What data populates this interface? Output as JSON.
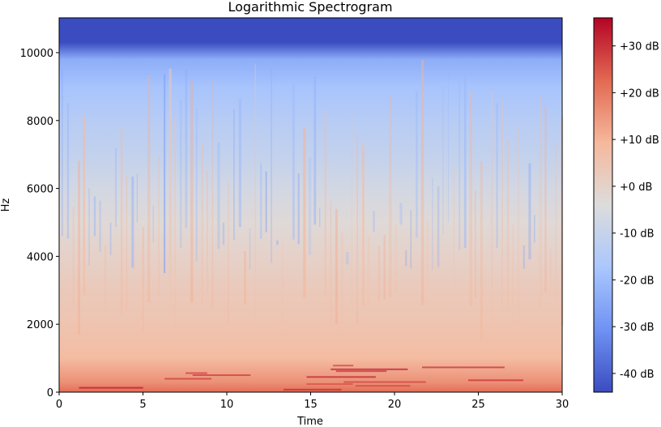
{
  "chart_data": {
    "type": "heatmap",
    "title": "Logarithmic Spectrogram",
    "xlabel": "Time",
    "ylabel": "Hz",
    "xlim": [
      0,
      30
    ],
    "ylim": [
      0,
      11025
    ],
    "x_ticks": [
      0,
      5,
      10,
      15,
      20,
      25,
      30
    ],
    "x_tick_labels": [
      "0",
      "5",
      "10",
      "15",
      "20",
      "25",
      "30"
    ],
    "y_ticks": [
      0,
      2000,
      4000,
      6000,
      8000,
      10000
    ],
    "y_tick_labels": [
      "0",
      "2000",
      "4000",
      "6000",
      "8000",
      "10000"
    ],
    "colorbar": {
      "range_db": [
        -44,
        36
      ],
      "ticks": [
        30,
        20,
        10,
        0,
        -10,
        -20,
        -30,
        -40
      ],
      "tick_labels": [
        "+30 dB",
        "+20 dB",
        "+10 dB",
        "+0 dB",
        "-10 dB",
        "-20 dB",
        "-30 dB",
        "-40 dB"
      ],
      "colormap": "coolwarm",
      "colormap_stops": [
        "#3b4cc0",
        "#6f92f3",
        "#aac7fd",
        "#dddcdc",
        "#f6b89c",
        "#e26952",
        "#b40426"
      ]
    },
    "frequency_profile_db": [
      {
        "hz": 0,
        "db": 22
      },
      {
        "hz": 300,
        "db": 16
      },
      {
        "hz": 1000,
        "db": 8
      },
      {
        "hz": 2000,
        "db": 5
      },
      {
        "hz": 3000,
        "db": 3
      },
      {
        "hz": 4000,
        "db": 0
      },
      {
        "hz": 5000,
        "db": -3
      },
      {
        "hz": 6000,
        "db": -7
      },
      {
        "hz": 7000,
        "db": -11
      },
      {
        "hz": 8000,
        "db": -14
      },
      {
        "hz": 9000,
        "db": -18
      },
      {
        "hz": 9800,
        "db": -24
      },
      {
        "hz": 10300,
        "db": -44
      },
      {
        "hz": 11025,
        "db": -44
      }
    ],
    "grid": false,
    "legend": "colorbar-right"
  }
}
